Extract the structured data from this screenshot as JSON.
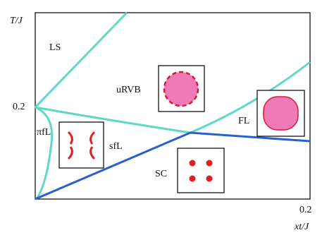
{
  "axes": {
    "y_label": "T/J",
    "y_tick": "0.2",
    "x_tick": "0.2",
    "x_label": "xt/J"
  },
  "regions": [
    {
      "label": "LS"
    },
    {
      "label": "uRVB"
    },
    {
      "label": "FL"
    },
    {
      "label": "πfL"
    },
    {
      "label": "sfL"
    },
    {
      "label": "SC"
    }
  ]
}
